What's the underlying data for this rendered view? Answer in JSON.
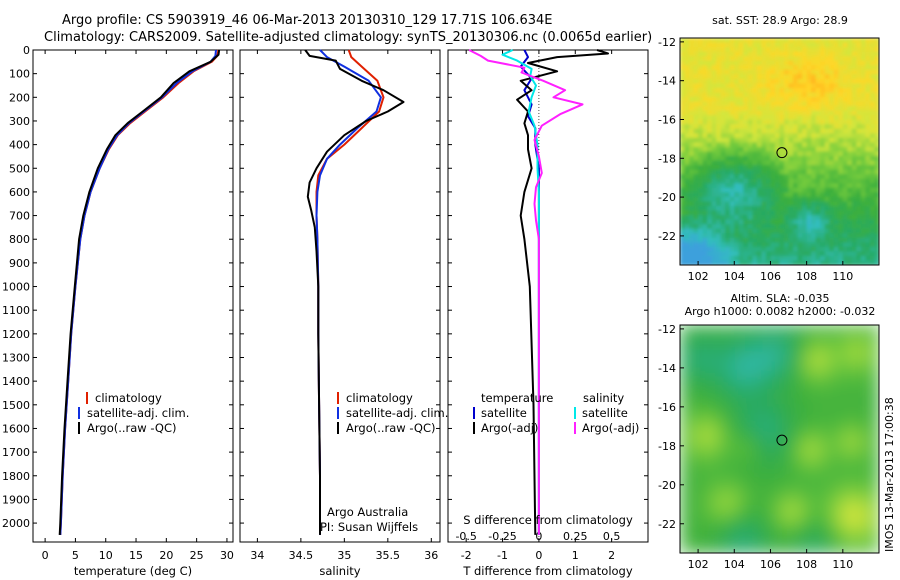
{
  "header": {
    "line1": "Argo profile: CS 5903919_46 06-Mar-2013 20130310_129 17.71S 106.634E",
    "line2": "Climatology: CARS2009. Satellite-adjusted climatology: synTS_20130306.nc (0.0065d earlier)"
  },
  "colors": {
    "climatology": "#e02000",
    "satellite_adj": "#1030e0",
    "argo": "#000000",
    "t_satellite": "#0000cc",
    "s_satellite": "#00e8e8",
    "s_argo": "#ff20ff"
  },
  "chart_data": [
    {
      "id": "temperature",
      "type": "line",
      "xlabel": "temperature (deg C)",
      "ylabel": "",
      "xlim": [
        -2,
        31
      ],
      "ylim": [
        2080,
        0
      ],
      "xticks": [
        0,
        5,
        10,
        15,
        20,
        25,
        30
      ],
      "yticks": [
        0,
        100,
        200,
        300,
        400,
        500,
        600,
        700,
        800,
        900,
        1000,
        1100,
        1200,
        1300,
        1400,
        1500,
        1600,
        1700,
        1800,
        1900,
        2000
      ],
      "legend": [
        "climatology",
        "satellite-adj. clim.",
        "Argo(..raw -QC)"
      ],
      "series": [
        {
          "name": "climatology",
          "color_key": "climatology",
          "points": [
            [
              28.6,
              0
            ],
            [
              28.4,
              25
            ],
            [
              27.5,
              50
            ],
            [
              24.5,
              90
            ],
            [
              22,
              140
            ],
            [
              19.5,
              200
            ],
            [
              16.5,
              260
            ],
            [
              14,
              310
            ],
            [
              12,
              360
            ],
            [
              10.5,
              420
            ],
            [
              9,
              500
            ],
            [
              7.5,
              600
            ],
            [
              6.5,
              700
            ],
            [
              5.8,
              800
            ],
            [
              5,
              1000
            ],
            [
              4.3,
              1200
            ],
            [
              3.8,
              1400
            ],
            [
              3.3,
              1600
            ],
            [
              2.9,
              1800
            ],
            [
              2.6,
              2000
            ],
            [
              2.5,
              2050
            ]
          ]
        },
        {
          "name": "satellite-adj. clim.",
          "color_key": "satellite_adj",
          "points": [
            [
              28.2,
              0
            ],
            [
              28.1,
              25
            ],
            [
              27.3,
              50
            ],
            [
              24.3,
              90
            ],
            [
              21.7,
              140
            ],
            [
              19.3,
              200
            ],
            [
              16.3,
              260
            ],
            [
              13.8,
              310
            ],
            [
              11.9,
              360
            ],
            [
              10.4,
              420
            ],
            [
              9,
              500
            ],
            [
              7.5,
              600
            ],
            [
              6.5,
              700
            ],
            [
              5.8,
              800
            ],
            [
              5,
              1000
            ],
            [
              4.3,
              1200
            ],
            [
              3.8,
              1400
            ],
            [
              3.3,
              1600
            ],
            [
              2.9,
              1800
            ],
            [
              2.6,
              2000
            ],
            [
              2.5,
              2050
            ]
          ]
        },
        {
          "name": "Argo(..raw -QC)",
          "color_key": "argo",
          "points": [
            [
              28.7,
              0
            ],
            [
              28.6,
              20
            ],
            [
              27.3,
              50
            ],
            [
              23.8,
              90
            ],
            [
              21.2,
              140
            ],
            [
              19.1,
              200
            ],
            [
              16.1,
              260
            ],
            [
              13.6,
              310
            ],
            [
              11.6,
              360
            ],
            [
              10.2,
              420
            ],
            [
              8.7,
              500
            ],
            [
              7.3,
              600
            ],
            [
              6.3,
              700
            ],
            [
              5.6,
              800
            ],
            [
              4.9,
              1000
            ],
            [
              4.2,
              1200
            ],
            [
              3.7,
              1400
            ],
            [
              3.2,
              1600
            ],
            [
              2.8,
              1800
            ],
            [
              2.5,
              2000
            ],
            [
              2.4,
              2050
            ]
          ]
        }
      ]
    },
    {
      "id": "salinity",
      "type": "line",
      "xlabel": "salinity",
      "ylabel": "",
      "xlim": [
        33.8,
        36.1
      ],
      "ylim": [
        2080,
        0
      ],
      "xticks": [
        34,
        34.5,
        35,
        35.5,
        36
      ],
      "legend": [
        "climatology",
        "satellite-adj. clim.",
        "Argo(..raw -QC)"
      ],
      "notes": [
        "Argo Australia",
        "PI: Susan Wijffels"
      ],
      "series": [
        {
          "name": "climatology",
          "color_key": "climatology",
          "points": [
            [
              35.05,
              0
            ],
            [
              35.08,
              30
            ],
            [
              35.2,
              70
            ],
            [
              35.38,
              130
            ],
            [
              35.45,
              200
            ],
            [
              35.4,
              260
            ],
            [
              35.2,
              330
            ],
            [
              35,
              400
            ],
            [
              34.8,
              460
            ],
            [
              34.7,
              530
            ],
            [
              34.68,
              600
            ],
            [
              34.68,
              700
            ],
            [
              34.69,
              800
            ],
            [
              34.7,
              1000
            ],
            [
              34.7,
              1200
            ],
            [
              34.71,
              1500
            ],
            [
              34.72,
              1800
            ],
            [
              34.72,
              2050
            ]
          ]
        },
        {
          "name": "satellite-adj. clim.",
          "color_key": "satellite_adj",
          "points": [
            [
              34.72,
              0
            ],
            [
              34.8,
              30
            ],
            [
              35.0,
              70
            ],
            [
              35.28,
              130
            ],
            [
              35.42,
              200
            ],
            [
              35.37,
              260
            ],
            [
              35.15,
              330
            ],
            [
              34.95,
              400
            ],
            [
              34.8,
              460
            ],
            [
              34.72,
              530
            ],
            [
              34.69,
              600
            ],
            [
              34.68,
              700
            ],
            [
              34.69,
              800
            ],
            [
              34.7,
              1000
            ],
            [
              34.7,
              1200
            ],
            [
              34.71,
              1500
            ],
            [
              34.72,
              1800
            ],
            [
              34.72,
              2050
            ]
          ]
        },
        {
          "name": "Argo(..raw -QC)",
          "color_key": "argo",
          "points": [
            [
              34.55,
              0
            ],
            [
              34.6,
              25
            ],
            [
              34.9,
              45
            ],
            [
              34.95,
              80
            ],
            [
              35.2,
              130
            ],
            [
              35.45,
              170
            ],
            [
              35.68,
              220
            ],
            [
              35.5,
              260
            ],
            [
              35.25,
              300
            ],
            [
              35.0,
              360
            ],
            [
              34.8,
              430
            ],
            [
              34.68,
              500
            ],
            [
              34.6,
              560
            ],
            [
              34.58,
              620
            ],
            [
              34.62,
              680
            ],
            [
              34.66,
              750
            ],
            [
              34.68,
              850
            ],
            [
              34.7,
              1000
            ],
            [
              34.7,
              1200
            ],
            [
              34.71,
              1500
            ],
            [
              34.72,
              1800
            ],
            [
              34.72,
              2050
            ]
          ]
        }
      ]
    },
    {
      "id": "differences",
      "type": "line",
      "xlabel": "T difference from climatology",
      "top_label": "S difference from climatology",
      "xlim": [
        -2.5,
        3.0
      ],
      "ylim": [
        2080,
        0
      ],
      "xticks": [
        -2,
        -1,
        0,
        1,
        2
      ],
      "top_ticks": [
        "-0.5",
        "-0.25",
        "0",
        "0.25",
        "0.5"
      ],
      "top_tick_values": [
        -0.5,
        -0.25,
        0,
        0.25,
        0.5
      ],
      "legend": {
        "left_title": "temperature",
        "right_title": "salinity",
        "items": [
          {
            "label": "satellite",
            "color_key": "t_satellite"
          },
          {
            "label": "Argo(-adj)",
            "color_key": "argo"
          },
          {
            "label": "satellite",
            "color_key": "s_satellite"
          },
          {
            "label": "Argo(-adj)",
            "color_key": "s_argo"
          }
        ]
      },
      "series": [
        {
          "name": "T satellite",
          "color_key": "t_satellite",
          "points": [
            [
              -0.4,
              0
            ],
            [
              -0.3,
              30
            ],
            [
              -0.5,
              70
            ],
            [
              -0.2,
              120
            ],
            [
              -0.4,
              170
            ],
            [
              -0.2,
              230
            ],
            [
              -0.3,
              280
            ],
            [
              -0.1,
              330
            ],
            [
              -0.1,
              400
            ],
            [
              0,
              500
            ],
            [
              0,
              700
            ],
            [
              0,
              1000
            ],
            [
              0,
              1500
            ],
            [
              0,
              2050
            ]
          ]
        },
        {
          "name": "T Argo(-adj)",
          "color_key": "argo",
          "points": [
            [
              1.6,
              0
            ],
            [
              1.9,
              15
            ],
            [
              0.5,
              30
            ],
            [
              -0.3,
              55
            ],
            [
              0.5,
              90
            ],
            [
              -0.5,
              130
            ],
            [
              -0.2,
              170
            ],
            [
              -0.6,
              210
            ],
            [
              -0.3,
              260
            ],
            [
              -0.4,
              310
            ],
            [
              -0.3,
              360
            ],
            [
              -0.3,
              420
            ],
            [
              -0.2,
              500
            ],
            [
              -0.4,
              600
            ],
            [
              -0.5,
              700
            ],
            [
              -0.4,
              800
            ],
            [
              -0.25,
              1000
            ],
            [
              -0.15,
              1500
            ],
            [
              -0.1,
              2050
            ]
          ]
        },
        {
          "name": "S satellite",
          "color_key": "s_satellite",
          "points": [
            [
              -0.18,
              0
            ],
            [
              -0.25,
              20
            ],
            [
              -0.15,
              45
            ],
            [
              -0.05,
              80
            ],
            [
              -0.06,
              110
            ],
            [
              -0.02,
              150
            ],
            [
              -0.05,
              200
            ],
            [
              -0.07,
              260
            ],
            [
              -0.03,
              320
            ],
            [
              -0.01,
              400
            ],
            [
              -0.01,
              500
            ],
            [
              0,
              600
            ],
            [
              0,
              800
            ],
            [
              0,
              1000
            ],
            [
              0,
              1500
            ],
            [
              0,
              2050
            ]
          ]
        },
        {
          "name": "S Argo(-adj)",
          "color_key": "s_argo",
          "points": [
            [
              -0.48,
              0
            ],
            [
              -0.4,
              25
            ],
            [
              -0.35,
              45
            ],
            [
              -0.1,
              75
            ],
            [
              -0.12,
              95
            ],
            [
              0.03,
              130
            ],
            [
              0.18,
              170
            ],
            [
              0.1,
              200
            ],
            [
              0.3,
              230
            ],
            [
              0.15,
              270
            ],
            [
              0.02,
              320
            ],
            [
              -0.03,
              380
            ],
            [
              0,
              450
            ],
            [
              0.02,
              520
            ],
            [
              -0.02,
              580
            ],
            [
              -0.03,
              650
            ],
            [
              -0.02,
              720
            ],
            [
              0,
              800
            ],
            [
              0,
              1000
            ],
            [
              0,
              1500
            ],
            [
              0,
              2050
            ]
          ]
        }
      ]
    },
    {
      "id": "sst_map",
      "type": "heatmap",
      "title": "sat. SST: 28.9  Argo: 28.9",
      "xlim": [
        101,
        112
      ],
      "ylim": [
        -23.5,
        -11.8
      ],
      "xticks": [
        102,
        104,
        106,
        108,
        110
      ],
      "yticks": [
        -12,
        -14,
        -16,
        -18,
        -20,
        -22
      ],
      "marker": {
        "lon": 106.634,
        "lat": -17.71
      }
    },
    {
      "id": "sla_map",
      "type": "heatmap",
      "title_line1": "Altim. SLA: -0.035",
      "title_line2": "Argo h1000: 0.0082 h2000: -0.032",
      "xlim": [
        101,
        112
      ],
      "ylim": [
        -23.5,
        -11.8
      ],
      "xticks": [
        102,
        104,
        106,
        108,
        110
      ],
      "yticks": [
        -12,
        -14,
        -16,
        -18,
        -20,
        -22
      ],
      "marker": {
        "lon": 106.634,
        "lat": -17.71
      }
    }
  ],
  "credit": "IMOS 13-Mar-2013 17:00:38"
}
